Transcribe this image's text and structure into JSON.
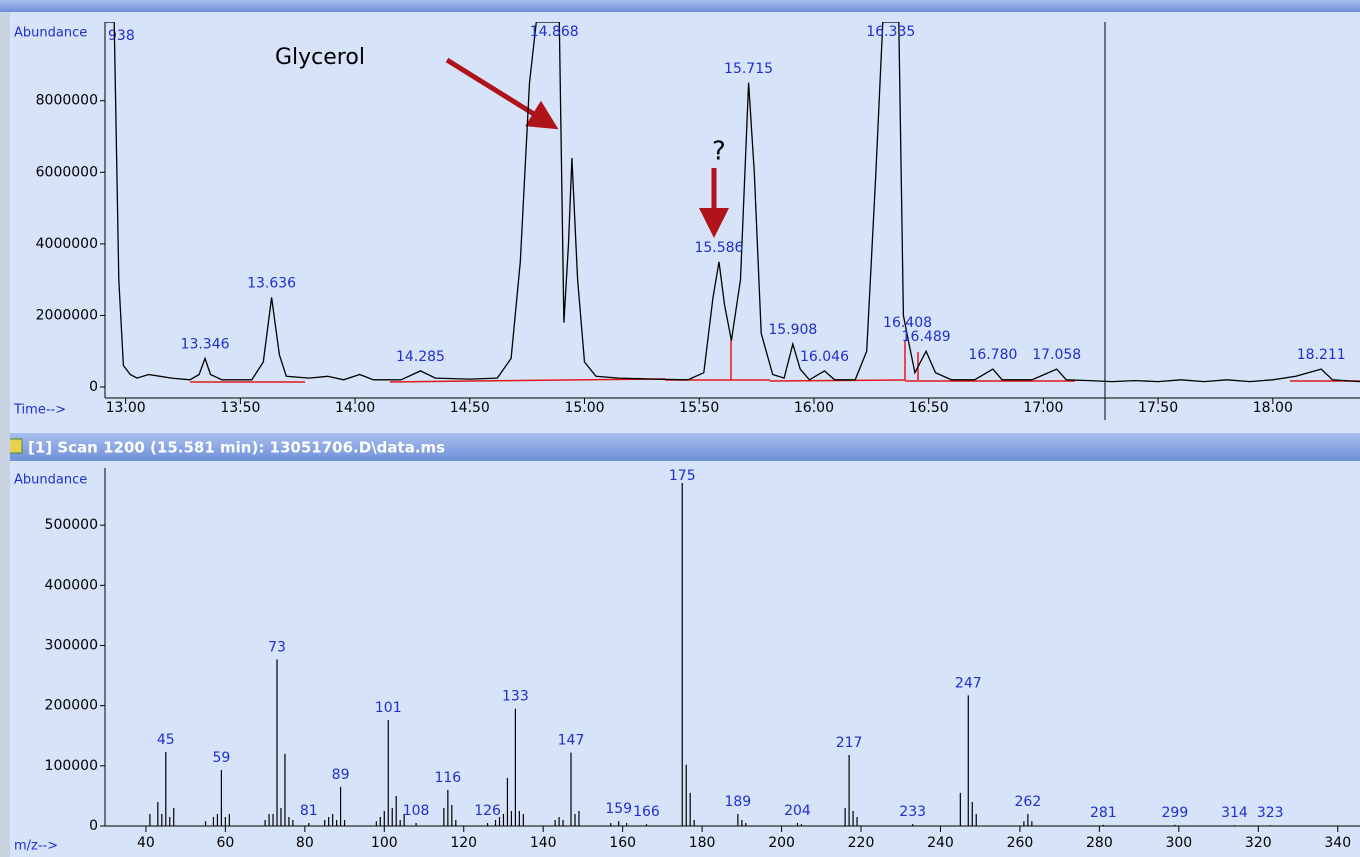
{
  "chart_data": [
    {
      "type": "line",
      "x_label": "Time-->",
      "y_label": "Abundance",
      "color": "#000000",
      "label_color": "#1f2fd0",
      "annotations": [
        "Glycerol",
        "?",
        "938"
      ],
      "x": [
        12.91,
        12.95,
        12.97,
        12.99,
        13.02,
        13.05,
        13.1,
        13.15,
        13.2,
        13.28,
        13.32,
        13.346,
        13.37,
        13.42,
        13.55,
        13.6,
        13.636,
        13.67,
        13.7,
        13.8,
        13.88,
        13.95,
        14.02,
        14.08,
        14.2,
        14.285,
        14.35,
        14.5,
        14.62,
        14.68,
        14.72,
        14.76,
        14.79,
        14.86,
        14.868,
        14.89,
        14.91,
        14.93,
        14.945,
        14.97,
        15.0,
        15.05,
        15.15,
        15.3,
        15.45,
        15.52,
        15.56,
        15.586,
        15.61,
        15.64,
        15.68,
        15.715,
        15.74,
        15.77,
        15.82,
        15.87,
        15.908,
        15.94,
        15.98,
        16.046,
        16.09,
        16.18,
        16.23,
        16.27,
        16.3,
        16.37,
        16.39,
        16.408,
        16.44,
        16.489,
        16.53,
        16.6,
        16.7,
        16.78,
        16.82,
        16.95,
        17.058,
        17.1,
        17.2,
        17.3,
        17.4,
        17.5,
        17.6,
        17.7,
        17.8,
        17.9,
        18.0,
        18.1,
        18.211,
        18.26,
        18.38
      ],
      "values": [
        10200000,
        10200000,
        3000000,
        600000,
        350000,
        250000,
        350000,
        300000,
        250000,
        200000,
        350000,
        800000,
        350000,
        200000,
        200000,
        700000,
        2500000,
        900000,
        300000,
        250000,
        300000,
        200000,
        350000,
        200000,
        200000,
        450000,
        250000,
        220000,
        250000,
        800000,
        3500000,
        8500000,
        10200000,
        10200000,
        10200000,
        10200000,
        1800000,
        4000000,
        6400000,
        3000000,
        700000,
        300000,
        250000,
        220000,
        200000,
        400000,
        2500000,
        3500000,
        2300000,
        1300000,
        3000000,
        8500000,
        6000000,
        1500000,
        350000,
        250000,
        1200000,
        500000,
        200000,
        450000,
        200000,
        200000,
        1000000,
        6000000,
        10200000,
        10200000,
        2000000,
        1400000,
        400000,
        1000000,
        400000,
        200000,
        200000,
        500000,
        200000,
        200000,
        500000,
        200000,
        180000,
        150000,
        180000,
        150000,
        200000,
        150000,
        200000,
        150000,
        200000,
        300000,
        500000,
        200000,
        150000
      ],
      "peak_labels": [
        {
          "value": 13.346,
          "label": "13.346"
        },
        {
          "value": 13.636,
          "label": "13.636"
        },
        {
          "value": 14.285,
          "label": "14.285"
        },
        {
          "value": 14.868,
          "label": "14.868"
        },
        {
          "value": 15.586,
          "label": "15.586"
        },
        {
          "value": 15.715,
          "label": "15.715"
        },
        {
          "value": 15.908,
          "label": "15.908"
        },
        {
          "value": 16.046,
          "label": "16.046"
        },
        {
          "value": 16.335,
          "label": "16.335"
        },
        {
          "value": 16.408,
          "label": "16.408"
        },
        {
          "value": 16.489,
          "label": "16.489"
        },
        {
          "value": 16.78,
          "label": "16.780"
        },
        {
          "value": 17.058,
          "label": "17.058"
        },
        {
          "value": 18.211,
          "label": "18.211"
        }
      ],
      "xlim": [
        12.91,
        18.38
      ],
      "ylim": [
        0,
        10200000
      ],
      "xticks": [
        {
          "value": 13,
          "label": "13.00"
        },
        {
          "value": 13.5,
          "label": "13.50"
        },
        {
          "value": 14,
          "label": "14.00"
        },
        {
          "value": 14.5,
          "label": "14.50"
        },
        {
          "value": 15,
          "label": "15.00"
        },
        {
          "value": 15.5,
          "label": "15.50"
        },
        {
          "value": 16,
          "label": "16.00"
        },
        {
          "value": 16.5,
          "label": "16.50"
        },
        {
          "value": 17,
          "label": "17.00"
        },
        {
          "value": 17.5,
          "label": "17.50"
        },
        {
          "value": 18,
          "label": "18.00"
        }
      ],
      "yticks": [
        0,
        2000000,
        4000000,
        6000000,
        8000000
      ]
    },
    {
      "type": "stem",
      "title": "[1] Scan 1200 (15.581 min): 13051706.D\\data.ms",
      "x_label": "m/z-->",
      "y_label": "Abundance",
      "color": "#000000",
      "label_color": "#1f2fd0",
      "x": [
        41,
        43,
        44,
        45,
        46,
        47,
        55,
        57,
        58,
        59,
        60,
        61,
        70,
        71,
        72,
        73,
        74,
        75,
        76,
        77,
        81,
        85,
        86,
        87,
        88,
        89,
        90,
        98,
        99,
        100,
        101,
        102,
        103,
        104,
        105,
        108,
        115,
        116,
        117,
        118,
        126,
        128,
        129,
        130,
        131,
        132,
        133,
        134,
        135,
        143,
        144,
        145,
        147,
        148,
        149,
        157,
        159,
        161,
        166,
        175,
        176,
        177,
        178,
        189,
        190,
        191,
        204,
        205,
        216,
        217,
        218,
        219,
        233,
        245,
        247,
        248,
        249,
        261,
        262,
        263,
        281,
        299,
        314,
        323
      ],
      "values": [
        20000,
        40000,
        20000,
        123000,
        15000,
        30000,
        8000,
        15000,
        20000,
        93000,
        15000,
        20000,
        10000,
        20000,
        20000,
        277000,
        30000,
        120000,
        15000,
        10000,
        5000,
        10000,
        15000,
        20000,
        10000,
        65000,
        10000,
        8000,
        15000,
        25000,
        176000,
        30000,
        50000,
        10000,
        20000,
        5000,
        30000,
        60000,
        35000,
        10000,
        5000,
        10000,
        15000,
        20000,
        80000,
        25000,
        195000,
        25000,
        20000,
        10000,
        15000,
        10000,
        122000,
        20000,
        25000,
        5000,
        8000,
        5000,
        3000,
        570000,
        102000,
        55000,
        10000,
        20000,
        10000,
        5000,
        5000,
        3000,
        30000,
        118000,
        25000,
        15000,
        3000,
        55000,
        217000,
        40000,
        20000,
        8000,
        20000,
        8000,
        2000,
        2000,
        1500,
        1500
      ],
      "peak_labels": [
        45,
        59,
        73,
        81,
        89,
        101,
        108,
        116,
        126,
        133,
        147,
        159,
        166,
        175,
        189,
        204,
        217,
        233,
        247,
        262,
        281,
        299,
        314,
        323
      ],
      "xlim": [
        29.7,
        345.6
      ],
      "ylim": [
        0,
        595000
      ],
      "xticks": [
        40,
        60,
        80,
        100,
        120,
        140,
        160,
        180,
        200,
        220,
        240,
        260,
        280,
        300,
        320,
        340
      ],
      "yticks": [
        0,
        100000,
        200000,
        300000,
        400000,
        500000
      ]
    }
  ]
}
